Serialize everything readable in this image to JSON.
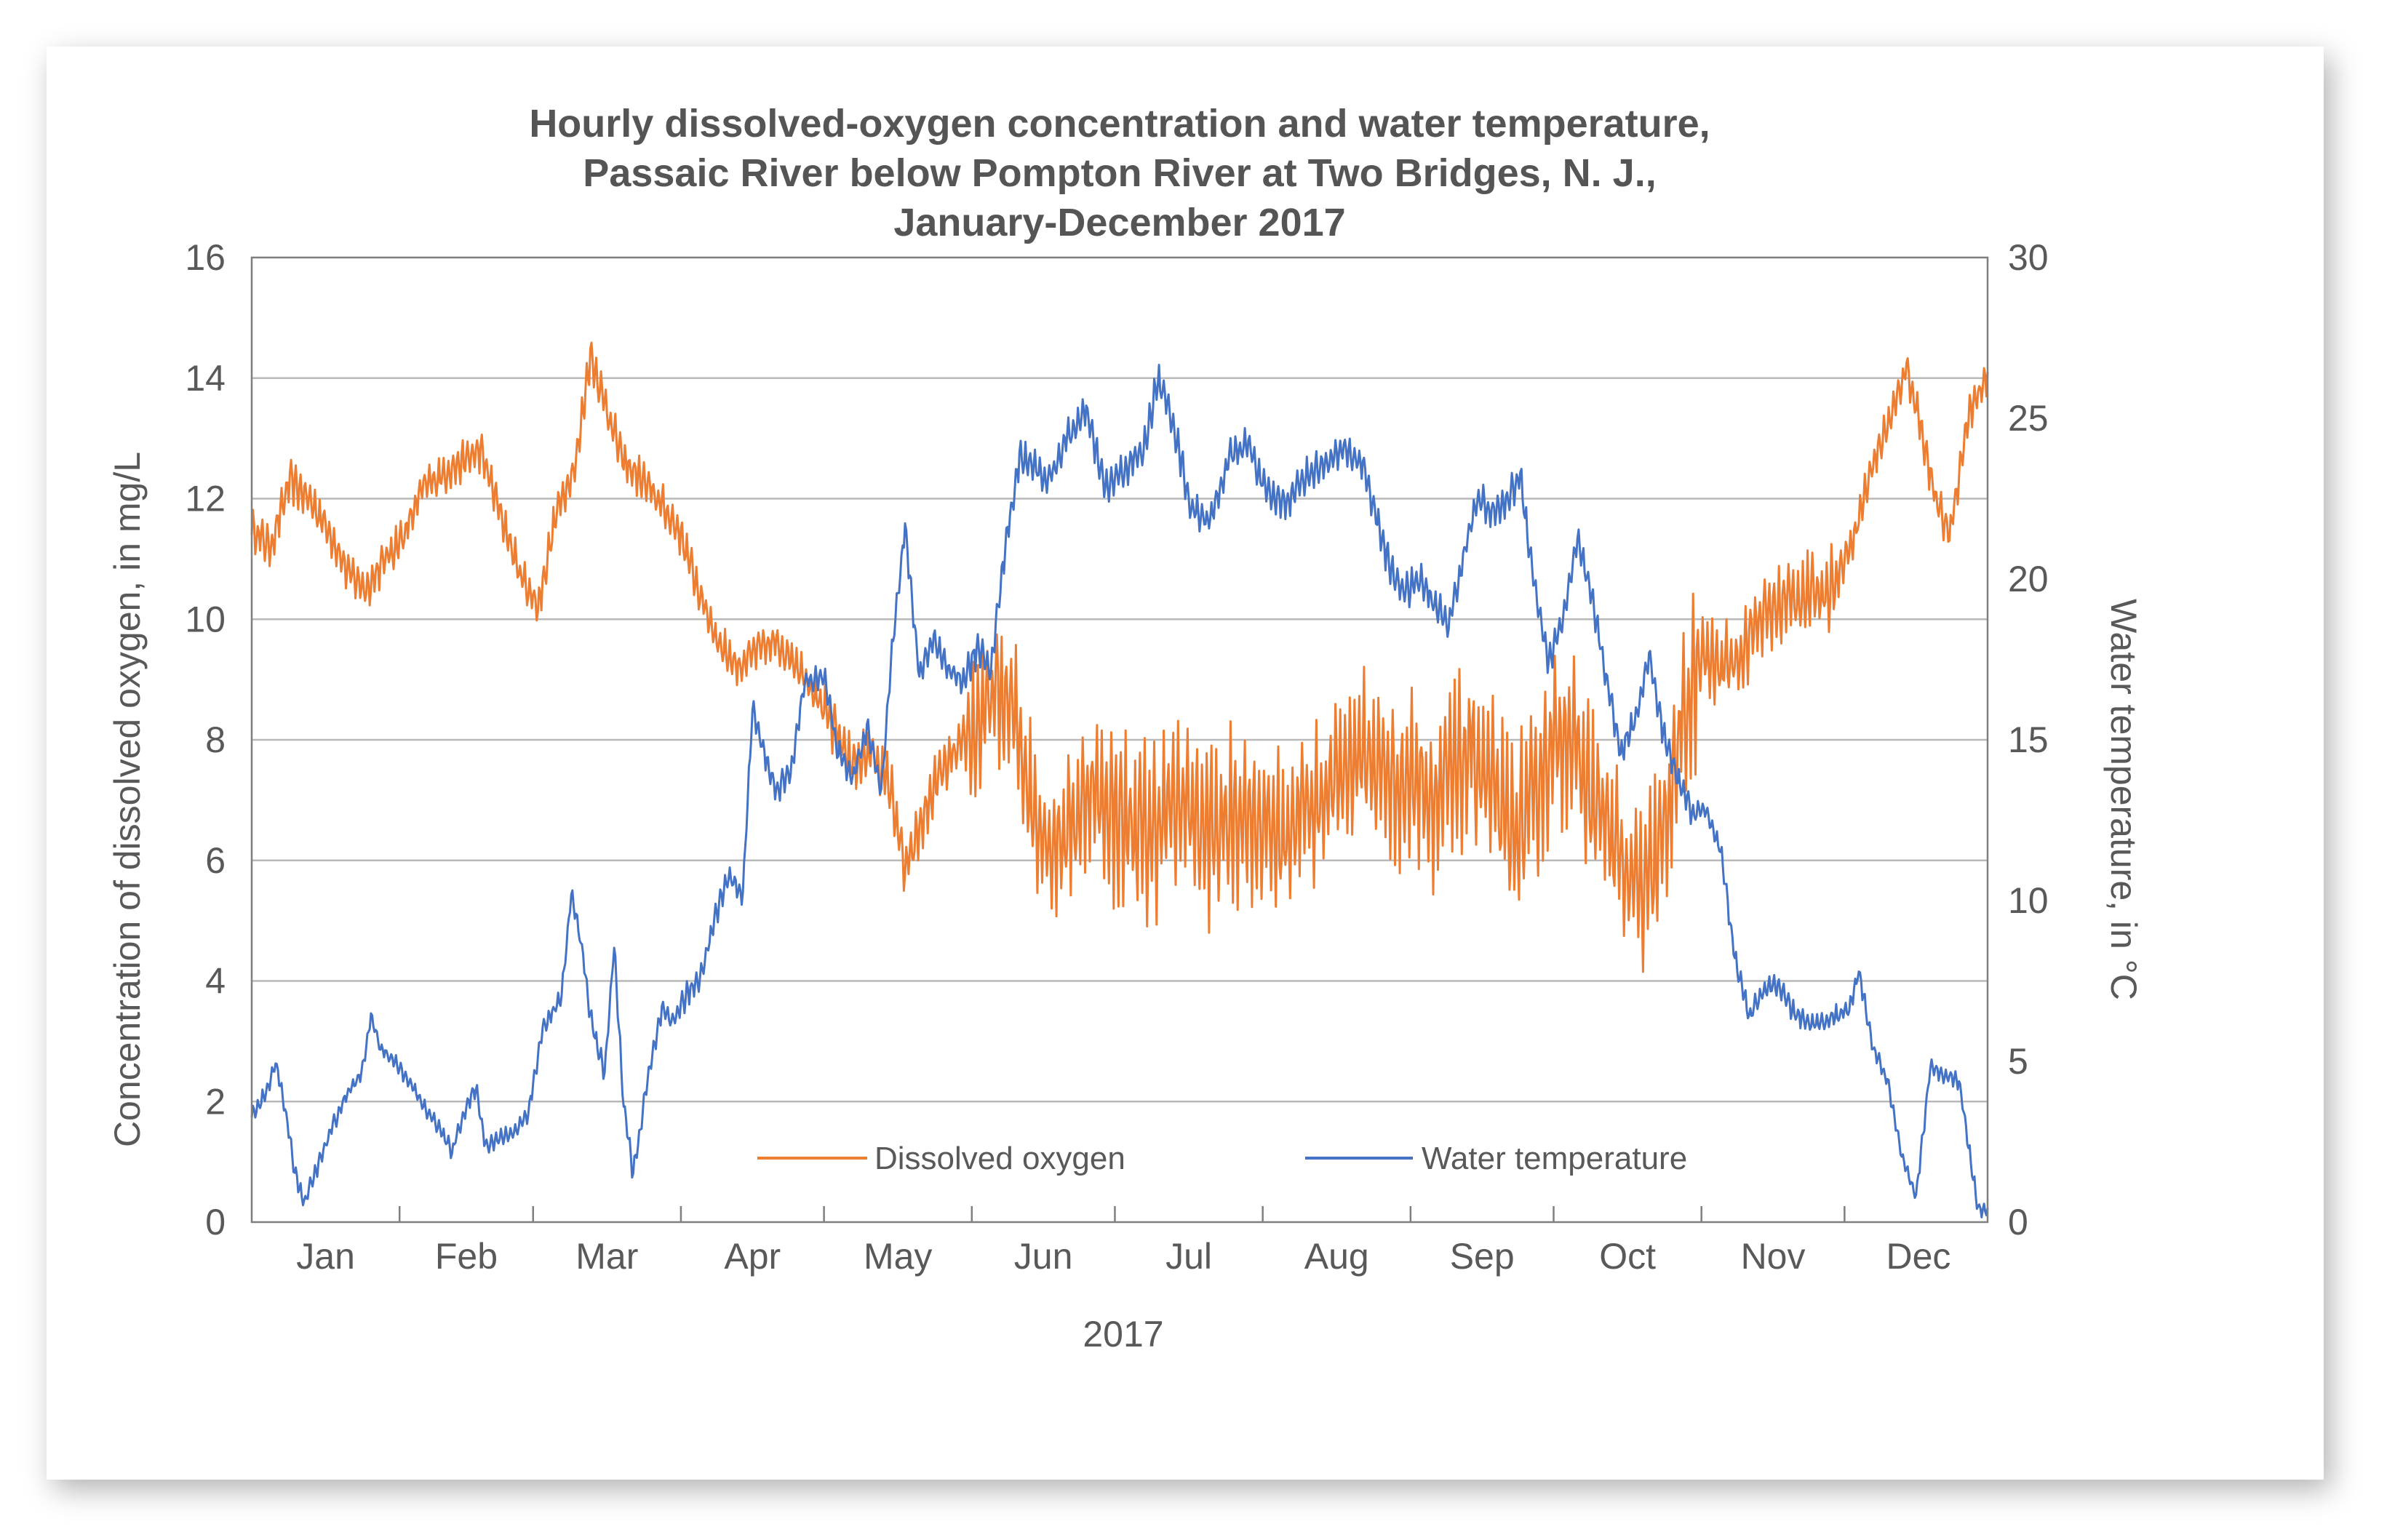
{
  "chart_data": {
    "type": "line",
    "title_lines": [
      "Hourly dissolved-oxygen concentration and water temperature,",
      "Passaic River below Pompton River at Two Bridges, N. J.,",
      "January-December 2017"
    ],
    "xlabel": "2017",
    "ylabel_left": "Concentration of dissolved oxygen, in mg/L",
    "ylabel_right": "Water temperature, in °C",
    "ylim_left": [
      0,
      16
    ],
    "ylim_right": [
      0,
      30
    ],
    "yticks_left": [
      "0",
      "2",
      "4",
      "6",
      "8",
      "10",
      "12",
      "14",
      "16"
    ],
    "yticks_right": [
      "0",
      "5",
      "10",
      "15",
      "20",
      "25",
      "30"
    ],
    "months": [
      "Jan",
      "Feb",
      "Mar",
      "Apr",
      "May",
      "Jun",
      "Jul",
      "Aug",
      "Sep",
      "Oct",
      "Nov",
      "Dec"
    ],
    "x_unit": "day of year",
    "xlim": [
      1,
      365
    ],
    "grid": "horizontal",
    "legend_position": "bottom-center",
    "series": [
      {
        "name": "Dissolved oxygen",
        "axis": "left",
        "color": "#ED7D31",
        "daily_swing": [
          0.5,
          0.5,
          0.5,
          0.5,
          0.7,
          1.8,
          2.2,
          2.0,
          2.2,
          2.2,
          1.0,
          0.5
        ],
        "points": [
          [
            1,
            11.5
          ],
          [
            5,
            11.2
          ],
          [
            9,
            12.3
          ],
          [
            13,
            12.0
          ],
          [
            17,
            11.5
          ],
          [
            21,
            10.8
          ],
          [
            25,
            10.5
          ],
          [
            29,
            11.0
          ],
          [
            33,
            11.4
          ],
          [
            37,
            12.2
          ],
          [
            41,
            12.4
          ],
          [
            45,
            12.6
          ],
          [
            49,
            12.8
          ],
          [
            53,
            11.8
          ],
          [
            57,
            10.8
          ],
          [
            61,
            10.2
          ],
          [
            65,
            11.8
          ],
          [
            69,
            12.6
          ],
          [
            72,
            14.4
          ],
          [
            75,
            13.6
          ],
          [
            79,
            12.6
          ],
          [
            83,
            12.3
          ],
          [
            87,
            11.9
          ],
          [
            91,
            11.4
          ],
          [
            95,
            10.4
          ],
          [
            99,
            9.6
          ],
          [
            103,
            9.2
          ],
          [
            107,
            9.5
          ],
          [
            111,
            9.6
          ],
          [
            115,
            9.3
          ],
          [
            119,
            8.8
          ],
          [
            123,
            8.2
          ],
          [
            127,
            7.6
          ],
          [
            131,
            7.8
          ],
          [
            135,
            7.2
          ],
          [
            138,
            5.8
          ],
          [
            141,
            6.5
          ],
          [
            145,
            7.4
          ],
          [
            149,
            7.8
          ],
          [
            153,
            8.2
          ],
          [
            157,
            8.8
          ],
          [
            161,
            8.4
          ],
          [
            165,
            6.8
          ],
          [
            169,
            6.2
          ],
          [
            173,
            6.6
          ],
          [
            177,
            7.2
          ],
          [
            181,
            6.8
          ],
          [
            185,
            6.6
          ],
          [
            189,
            6.4
          ],
          [
            193,
            6.8
          ],
          [
            197,
            7.0
          ],
          [
            201,
            6.4
          ],
          [
            205,
            6.6
          ],
          [
            209,
            6.8
          ],
          [
            213,
            6.6
          ],
          [
            217,
            6.4
          ],
          [
            221,
            6.8
          ],
          [
            225,
            7.0
          ],
          [
            229,
            7.4
          ],
          [
            233,
            7.8
          ],
          [
            237,
            7.6
          ],
          [
            241,
            7.2
          ],
          [
            245,
            7.4
          ],
          [
            249,
            7.0
          ],
          [
            253,
            7.4
          ],
          [
            257,
            7.8
          ],
          [
            261,
            7.2
          ],
          [
            265,
            6.4
          ],
          [
            269,
            6.8
          ],
          [
            273,
            7.8
          ],
          [
            277,
            8.2
          ],
          [
            281,
            7.2
          ],
          [
            285,
            6.6
          ],
          [
            289,
            5.8
          ],
          [
            293,
            5.4
          ],
          [
            297,
            6.4
          ],
          [
            301,
            8.2
          ],
          [
            305,
            9.4
          ],
          [
            309,
            9.2
          ],
          [
            313,
            9.4
          ],
          [
            317,
            10.0
          ],
          [
            321,
            10.2
          ],
          [
            325,
            10.4
          ],
          [
            329,
            10.4
          ],
          [
            333,
            10.6
          ],
          [
            337,
            11.4
          ],
          [
            341,
            12.6
          ],
          [
            345,
            13.4
          ],
          [
            348,
            14.2
          ],
          [
            351,
            13.2
          ],
          [
            354,
            12.0
          ],
          [
            357,
            11.4
          ],
          [
            361,
            13.4
          ],
          [
            365,
            14.0
          ]
        ]
      },
      {
        "name": "Water temperature",
        "axis": "right",
        "color": "#4472C4",
        "daily_swing": [
          0.4,
          0.4,
          0.5,
          0.6,
          0.6,
          0.8,
          0.8,
          0.8,
          0.8,
          0.7,
          0.5,
          0.4
        ],
        "points": [
          [
            1,
            3.3
          ],
          [
            4,
            4.0
          ],
          [
            6,
            5.0
          ],
          [
            8,
            3.5
          ],
          [
            10,
            1.6
          ],
          [
            12,
            0.6
          ],
          [
            15,
            1.8
          ],
          [
            18,
            3.0
          ],
          [
            21,
            4.0
          ],
          [
            24,
            4.6
          ],
          [
            26,
            6.4
          ],
          [
            28,
            5.4
          ],
          [
            31,
            5.0
          ],
          [
            34,
            4.4
          ],
          [
            37,
            3.6
          ],
          [
            40,
            3.0
          ],
          [
            43,
            2.2
          ],
          [
            45,
            3.2
          ],
          [
            48,
            4.2
          ],
          [
            50,
            2.4
          ],
          [
            53,
            2.6
          ],
          [
            56,
            2.8
          ],
          [
            59,
            3.4
          ],
          [
            62,
            6.0
          ],
          [
            66,
            7.0
          ],
          [
            68,
            10.2
          ],
          [
            70,
            8.8
          ],
          [
            72,
            6.4
          ],
          [
            75,
            4.6
          ],
          [
            77,
            8.6
          ],
          [
            79,
            3.6
          ],
          [
            81,
            1.5
          ],
          [
            84,
            4.4
          ],
          [
            87,
            6.6
          ],
          [
            89,
            6.2
          ],
          [
            92,
            7.0
          ],
          [
            95,
            7.6
          ],
          [
            98,
            9.4
          ],
          [
            101,
            10.8
          ],
          [
            104,
            10.2
          ],
          [
            106,
            16.0
          ],
          [
            108,
            14.8
          ],
          [
            111,
            13.4
          ],
          [
            114,
            14.0
          ],
          [
            117,
            16.8
          ],
          [
            121,
            17.0
          ],
          [
            124,
            14.6
          ],
          [
            127,
            13.8
          ],
          [
            130,
            15.4
          ],
          [
            133,
            13.4
          ],
          [
            135,
            17.4
          ],
          [
            138,
            21.6
          ],
          [
            141,
            17.0
          ],
          [
            144,
            18.2
          ],
          [
            147,
            17.2
          ],
          [
            150,
            16.8
          ],
          [
            153,
            17.8
          ],
          [
            156,
            17.2
          ],
          [
            159,
            21.0
          ],
          [
            162,
            23.8
          ],
          [
            165,
            23.6
          ],
          [
            168,
            23.0
          ],
          [
            172,
            24.4
          ],
          [
            176,
            25.2
          ],
          [
            180,
            22.8
          ],
          [
            184,
            23.4
          ],
          [
            188,
            24.0
          ],
          [
            191,
            26.2
          ],
          [
            194,
            25.0
          ],
          [
            198,
            22.2
          ],
          [
            202,
            21.8
          ],
          [
            206,
            23.8
          ],
          [
            210,
            24.2
          ],
          [
            214,
            22.6
          ],
          [
            218,
            22.4
          ],
          [
            222,
            23.2
          ],
          [
            226,
            23.6
          ],
          [
            230,
            24.0
          ],
          [
            234,
            23.6
          ],
          [
            237,
            21.8
          ],
          [
            240,
            20.2
          ],
          [
            243,
            19.6
          ],
          [
            246,
            20.0
          ],
          [
            249,
            19.2
          ],
          [
            252,
            18.6
          ],
          [
            255,
            20.6
          ],
          [
            258,
            22.6
          ],
          [
            261,
            22.0
          ],
          [
            264,
            22.4
          ],
          [
            267,
            23.2
          ],
          [
            270,
            19.8
          ],
          [
            273,
            17.4
          ],
          [
            276,
            18.8
          ],
          [
            279,
            21.2
          ],
          [
            282,
            19.4
          ],
          [
            285,
            17.0
          ],
          [
            288,
            14.6
          ],
          [
            291,
            15.6
          ],
          [
            294,
            17.6
          ],
          [
            297,
            15.2
          ],
          [
            300,
            13.8
          ],
          [
            303,
            12.8
          ],
          [
            306,
            12.8
          ],
          [
            309,
            11.6
          ],
          [
            312,
            8.2
          ],
          [
            315,
            6.4
          ],
          [
            318,
            7.2
          ],
          [
            321,
            7.4
          ],
          [
            324,
            6.6
          ],
          [
            327,
            6.2
          ],
          [
            330,
            6.2
          ],
          [
            333,
            6.4
          ],
          [
            336,
            6.6
          ],
          [
            338,
            7.8
          ],
          [
            341,
            5.4
          ],
          [
            344,
            4.4
          ],
          [
            347,
            2.0
          ],
          [
            350,
            0.8
          ],
          [
            353,
            4.8
          ],
          [
            356,
            4.6
          ],
          [
            359,
            4.4
          ],
          [
            361,
            2.4
          ],
          [
            363,
            0.4
          ],
          [
            365,
            0.4
          ]
        ]
      }
    ]
  }
}
